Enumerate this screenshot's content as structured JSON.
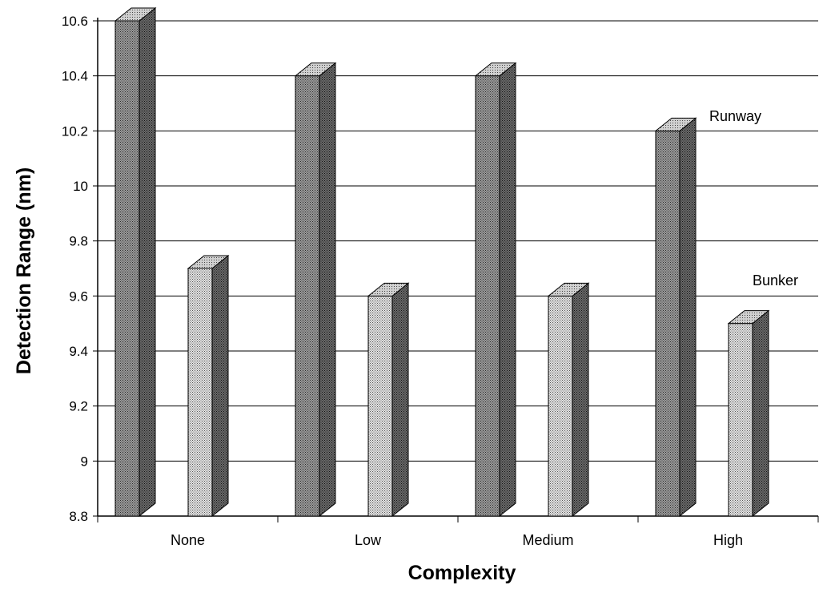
{
  "chart_data": {
    "type": "bar",
    "title": "",
    "xlabel": "Complexity",
    "ylabel": "Detection Range (nm)",
    "categories": [
      "None",
      "Low",
      "Medium",
      "High"
    ],
    "series": [
      {
        "name": "Runway",
        "values": [
          10.6,
          10.4,
          10.4,
          10.2
        ]
      },
      {
        "name": "Bunker",
        "values": [
          9.7,
          9.6,
          9.6,
          9.5
        ]
      }
    ],
    "ylim": [
      8.8,
      10.6
    ],
    "yticks": [
      "8.8",
      "9",
      "9.2",
      "9.4",
      "9.6",
      "9.8",
      "10",
      "10.2",
      "10.4",
      "10.6"
    ],
    "grid": true,
    "legend": "series names labeled directly at right of plot",
    "style": "3d"
  }
}
